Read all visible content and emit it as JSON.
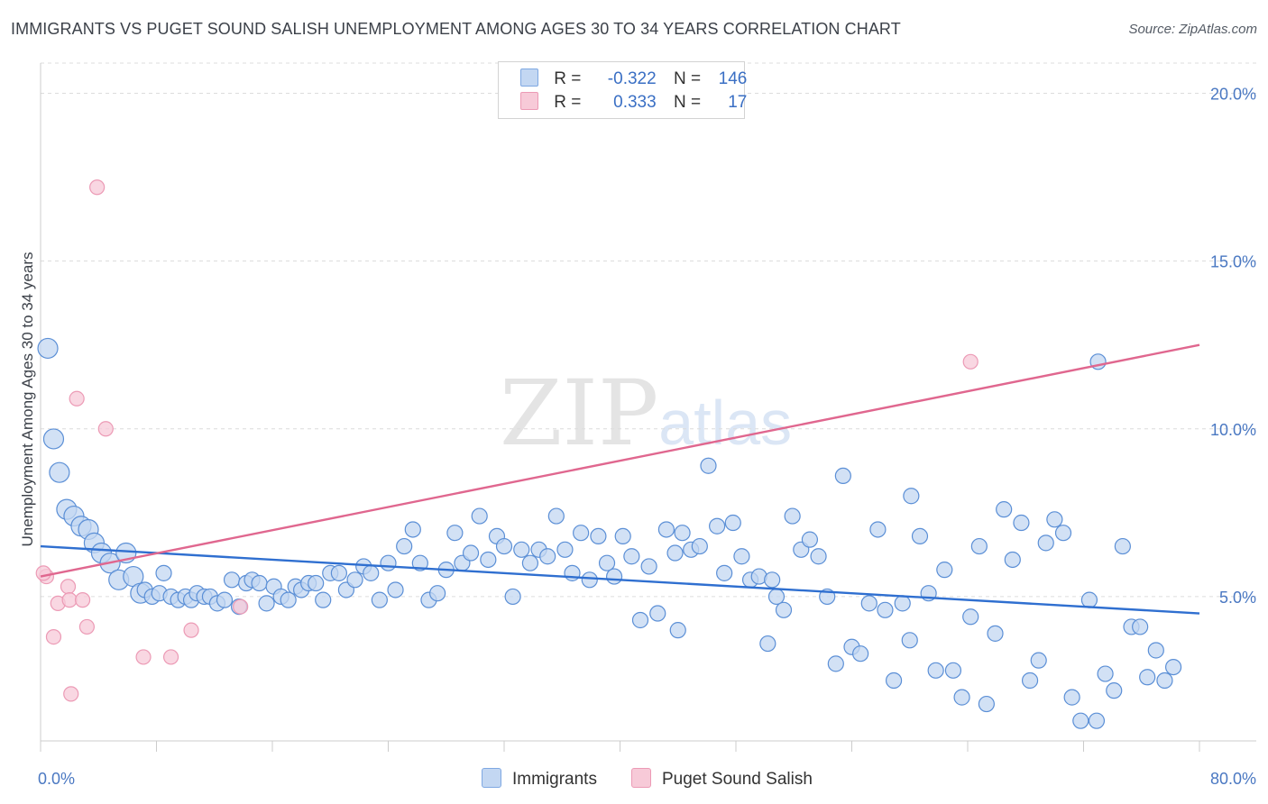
{
  "title": "IMMIGRANTS VS PUGET SOUND SALISH UNEMPLOYMENT AMONG AGES 30 TO 34 YEARS CORRELATION CHART",
  "source": "Source: ZipAtlas.com",
  "watermark": {
    "zip": "ZIP",
    "atlas": "atlas"
  },
  "legend": {
    "rows": [
      {
        "r_label": "R =",
        "r_value": "-0.322",
        "n_label": "N =",
        "n_value": "146",
        "color": "#7ea8e2",
        "fill": "#c3d7f2"
      },
      {
        "r_label": "R =",
        "r_value": "0.333",
        "n_label": "N =",
        "n_value": "17",
        "color": "#ec9ab5",
        "fill": "#f7cad8"
      }
    ]
  },
  "bottom_legend": [
    "Immigrants",
    "Puget Sound Salish"
  ],
  "chart_data": {
    "type": "scatter",
    "title": "IMMIGRANTS VS PUGET SOUND SALISH UNEMPLOYMENT AMONG AGES 30 TO 34 YEARS CORRELATION CHART",
    "xlabel": "",
    "ylabel": "Unemployment Among Ages 30 to 34 years",
    "xlim": [
      0,
      80
    ],
    "ylim": [
      0.7,
      20.9
    ],
    "x_tick_labels": [
      "0.0%",
      "80.0%"
    ],
    "y_ticks": [
      5,
      10,
      15,
      20
    ],
    "y_tick_labels": [
      "5.0%",
      "10.0%",
      "15.0%",
      "20.0%"
    ],
    "grid": "horizontal dashed",
    "legend_position": "top-center",
    "series": [
      {
        "name": "Immigrants",
        "color": "#5b8fd6",
        "fill": "#c3d7f2",
        "trend": {
          "x": [
            0,
            80
          ],
          "y": [
            6.5,
            4.5
          ],
          "color": "#2f6fd0"
        },
        "points": [
          [
            0.5,
            12.4
          ],
          [
            0.9,
            9.7
          ],
          [
            1.3,
            8.7
          ],
          [
            1.8,
            7.6
          ],
          [
            2.3,
            7.4
          ],
          [
            2.8,
            7.1
          ],
          [
            3.3,
            7.0
          ],
          [
            3.7,
            6.6
          ],
          [
            4.2,
            6.3
          ],
          [
            4.8,
            6.0
          ],
          [
            5.4,
            5.5
          ],
          [
            5.9,
            6.3
          ],
          [
            6.4,
            5.6
          ],
          [
            6.9,
            5.1
          ],
          [
            7.2,
            5.2
          ],
          [
            7.7,
            5.0
          ],
          [
            8.2,
            5.1
          ],
          [
            8.5,
            5.7
          ],
          [
            9.0,
            5.0
          ],
          [
            9.5,
            4.9
          ],
          [
            10.0,
            5.0
          ],
          [
            10.4,
            4.9
          ],
          [
            10.8,
            5.1
          ],
          [
            11.3,
            5.0
          ],
          [
            11.7,
            5.0
          ],
          [
            12.2,
            4.8
          ],
          [
            12.7,
            4.9
          ],
          [
            13.2,
            5.5
          ],
          [
            13.7,
            4.7
          ],
          [
            14.2,
            5.4
          ],
          [
            14.6,
            5.5
          ],
          [
            15.1,
            5.4
          ],
          [
            15.6,
            4.8
          ],
          [
            16.1,
            5.3
          ],
          [
            16.6,
            5.0
          ],
          [
            17.1,
            4.9
          ],
          [
            17.6,
            5.3
          ],
          [
            18.0,
            5.2
          ],
          [
            18.5,
            5.4
          ],
          [
            19.0,
            5.4
          ],
          [
            19.5,
            4.9
          ],
          [
            20.0,
            5.7
          ],
          [
            20.6,
            5.7
          ],
          [
            21.1,
            5.2
          ],
          [
            21.7,
            5.5
          ],
          [
            22.3,
            5.9
          ],
          [
            22.8,
            5.7
          ],
          [
            23.4,
            4.9
          ],
          [
            24.0,
            6.0
          ],
          [
            24.5,
            5.2
          ],
          [
            25.1,
            6.5
          ],
          [
            25.7,
            7.0
          ],
          [
            26.2,
            6.0
          ],
          [
            26.8,
            4.9
          ],
          [
            27.4,
            5.1
          ],
          [
            28.0,
            5.8
          ],
          [
            28.6,
            6.9
          ],
          [
            29.1,
            6.0
          ],
          [
            29.7,
            6.3
          ],
          [
            30.3,
            7.4
          ],
          [
            30.9,
            6.1
          ],
          [
            31.5,
            6.8
          ],
          [
            32.0,
            6.5
          ],
          [
            32.6,
            5.0
          ],
          [
            33.2,
            6.4
          ],
          [
            33.8,
            6.0
          ],
          [
            34.4,
            6.4
          ],
          [
            35.0,
            6.2
          ],
          [
            35.6,
            7.4
          ],
          [
            36.2,
            6.4
          ],
          [
            36.7,
            5.7
          ],
          [
            37.3,
            6.9
          ],
          [
            37.9,
            5.5
          ],
          [
            38.5,
            6.8
          ],
          [
            39.1,
            6.0
          ],
          [
            39.6,
            5.6
          ],
          [
            40.2,
            6.8
          ],
          [
            40.8,
            6.2
          ],
          [
            41.4,
            4.3
          ],
          [
            42.0,
            5.9
          ],
          [
            42.6,
            4.5
          ],
          [
            43.2,
            7.0
          ],
          [
            43.8,
            6.3
          ],
          [
            44.3,
            6.9
          ],
          [
            44.9,
            6.4
          ],
          [
            45.5,
            6.5
          ],
          [
            46.1,
            8.9
          ],
          [
            46.7,
            7.1
          ],
          [
            47.2,
            5.7
          ],
          [
            47.8,
            7.2
          ],
          [
            48.4,
            6.2
          ],
          [
            49.0,
            5.5
          ],
          [
            49.6,
            5.6
          ],
          [
            50.2,
            3.6
          ],
          [
            50.8,
            5.0
          ],
          [
            51.3,
            4.6
          ],
          [
            51.9,
            7.4
          ],
          [
            52.5,
            6.4
          ],
          [
            53.1,
            6.7
          ],
          [
            53.7,
            6.2
          ],
          [
            54.3,
            5.0
          ],
          [
            54.9,
            3.0
          ],
          [
            55.4,
            8.6
          ],
          [
            56.0,
            3.5
          ],
          [
            56.6,
            3.3
          ],
          [
            57.2,
            4.8
          ],
          [
            57.8,
            7.0
          ],
          [
            58.3,
            4.6
          ],
          [
            58.9,
            2.5
          ],
          [
            59.5,
            4.8
          ],
          [
            60.1,
            8.0
          ],
          [
            60.7,
            6.8
          ],
          [
            61.3,
            5.1
          ],
          [
            61.8,
            2.8
          ],
          [
            62.4,
            5.8
          ],
          [
            63.0,
            2.8
          ],
          [
            63.6,
            2.0
          ],
          [
            64.2,
            4.4
          ],
          [
            64.8,
            6.5
          ],
          [
            65.3,
            1.8
          ],
          [
            65.9,
            3.9
          ],
          [
            66.5,
            7.6
          ],
          [
            67.1,
            6.1
          ],
          [
            67.7,
            7.2
          ],
          [
            68.3,
            2.5
          ],
          [
            68.9,
            3.1
          ],
          [
            69.4,
            6.6
          ],
          [
            70.0,
            7.3
          ],
          [
            70.6,
            6.9
          ],
          [
            71.2,
            2.0
          ],
          [
            71.8,
            1.3
          ],
          [
            72.4,
            4.9
          ],
          [
            72.9,
            1.3
          ],
          [
            73.5,
            2.7
          ],
          [
            74.1,
            2.2
          ],
          [
            74.7,
            6.5
          ],
          [
            75.3,
            4.1
          ],
          [
            75.9,
            4.1
          ],
          [
            76.4,
            2.6
          ],
          [
            77.0,
            3.4
          ],
          [
            77.6,
            2.5
          ],
          [
            78.2,
            2.9
          ],
          [
            73.0,
            12.0
          ],
          [
            50.5,
            5.5
          ],
          [
            44.0,
            4.0
          ],
          [
            60.0,
            3.7
          ]
        ]
      },
      {
        "name": "Puget Sound Salish",
        "color": "#ec9ab5",
        "fill": "#f7cad8",
        "trend": {
          "x": [
            0,
            80
          ],
          "y": [
            5.6,
            12.5
          ],
          "color": "#e0678f"
        },
        "points": [
          [
            0.4,
            5.6
          ],
          [
            0.9,
            3.8
          ],
          [
            1.2,
            4.8
          ],
          [
            1.9,
            5.3
          ],
          [
            2.0,
            4.9
          ],
          [
            2.1,
            2.1
          ],
          [
            2.5,
            10.9
          ],
          [
            2.9,
            4.9
          ],
          [
            3.2,
            4.1
          ],
          [
            3.9,
            17.2
          ],
          [
            4.5,
            10.0
          ],
          [
            7.1,
            3.2
          ],
          [
            9.0,
            3.2
          ],
          [
            10.4,
            4.0
          ],
          [
            13.8,
            4.7
          ],
          [
            64.2,
            12.0
          ],
          [
            0.2,
            5.7
          ]
        ]
      }
    ]
  }
}
